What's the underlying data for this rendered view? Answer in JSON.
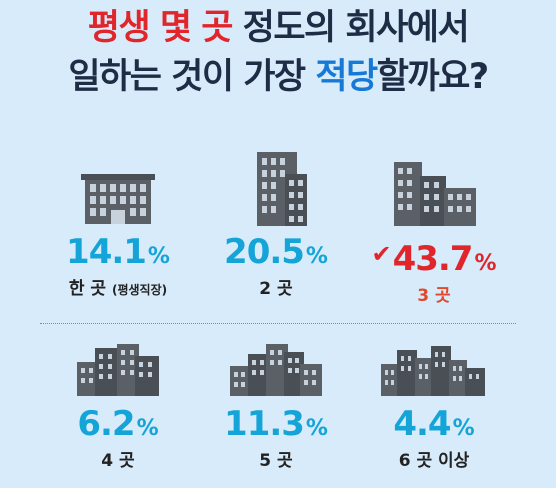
{
  "title": {
    "line1": [
      {
        "text": "평생 몇 곳",
        "color": "red"
      },
      {
        "text": " 정도의 회사에서",
        "color": "dark"
      }
    ],
    "line2": [
      {
        "text": "일하는 것이 가장 ",
        "color": "dark"
      },
      {
        "text": "적당",
        "color": "blue"
      },
      {
        "text": "할까요?",
        "color": "dark"
      }
    ]
  },
  "colors": {
    "background": "#d8ebfa",
    "percent": "#14a4d8",
    "highlight": "#e0262b",
    "title_dark": "#1e2c45",
    "title_blue": "#1779d6",
    "building": "#5b6066"
  },
  "options": [
    {
      "icon": "low-building-icon",
      "value": "14.1",
      "unit": "%",
      "label": "한 곳",
      "label_note": "(평생직장)",
      "selected": false
    },
    {
      "icon": "tall-building-icon",
      "value": "20.5",
      "unit": "%",
      "label": "2 곳",
      "label_note": "",
      "selected": false
    },
    {
      "icon": "three-buildings-icon",
      "value": "43.7",
      "unit": "%",
      "label": "3 곳",
      "label_note": "",
      "selected": true,
      "check_icon": "checkmark-icon"
    },
    {
      "icon": "four-buildings-icon",
      "value": "6.2",
      "unit": "%",
      "label": "4 곳",
      "label_note": "",
      "selected": false
    },
    {
      "icon": "five-buildings-icon",
      "value": "11.3",
      "unit": "%",
      "label": "5 곳",
      "label_note": "",
      "selected": false
    },
    {
      "icon": "six-buildings-icon",
      "value": "4.4",
      "unit": "%",
      "label": "6 곳 이상",
      "label_note": "",
      "selected": false
    }
  ]
}
